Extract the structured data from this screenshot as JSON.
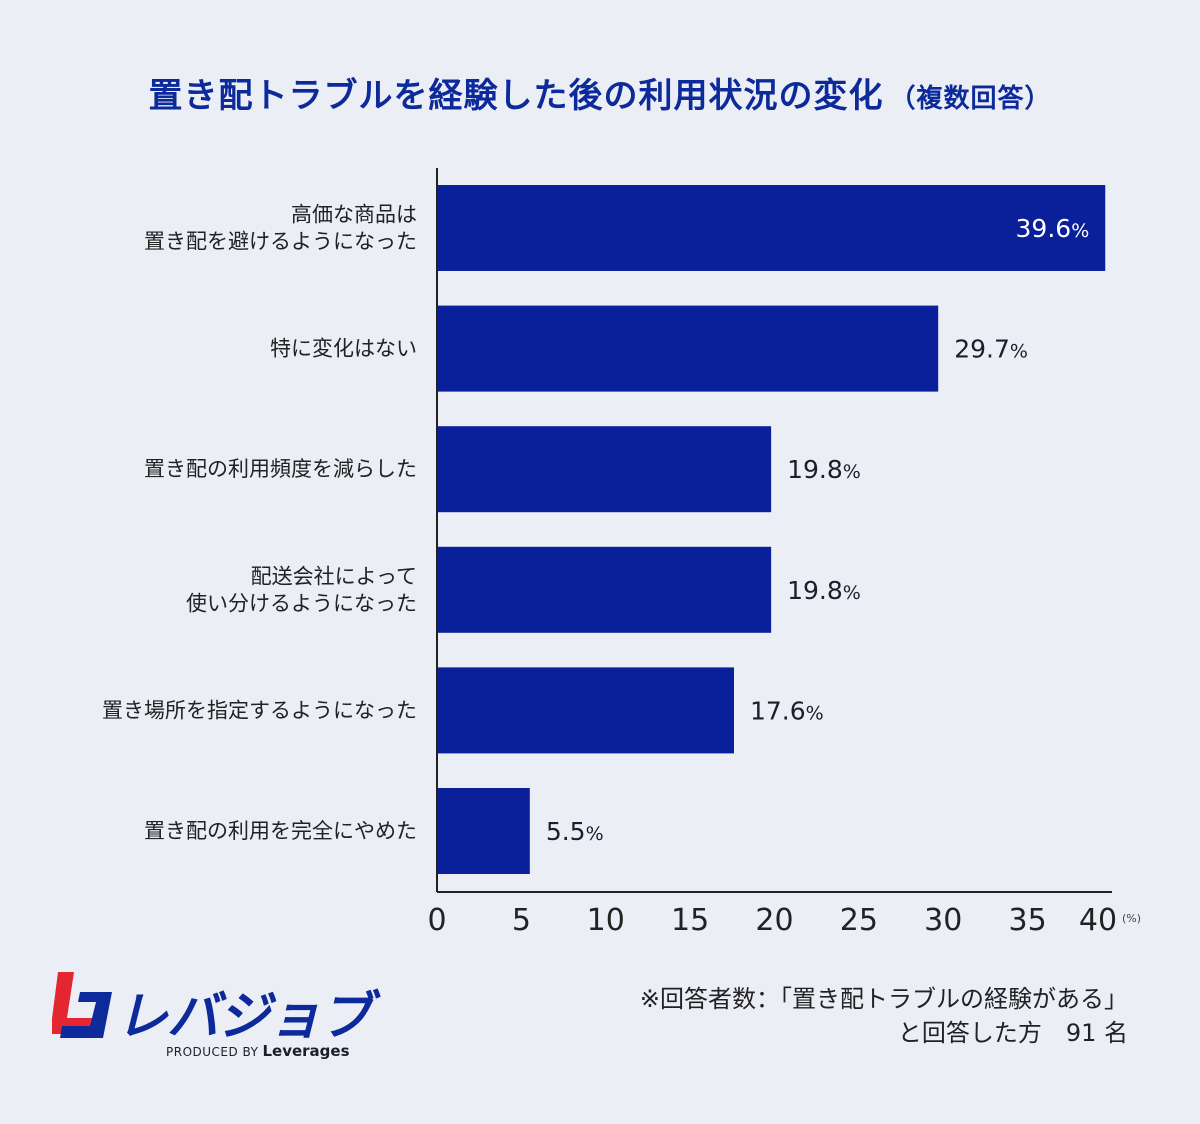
{
  "title": "置き配トラブルを経験した後の利用状況の変化",
  "subtitle": "（複数回答）",
  "chart_data": {
    "type": "bar",
    "orientation": "horizontal",
    "categories": [
      [
        "高価な商品は",
        "置き配を避けるようになった"
      ],
      [
        "特に変化はない"
      ],
      [
        "置き配の利用頻度を減らした"
      ],
      [
        "配送会社によって",
        "使い分けるようになった"
      ],
      [
        "置き場所を指定するようになった"
      ],
      [
        "置き配の利用を完全にやめた"
      ]
    ],
    "values": [
      39.6,
      29.7,
      19.8,
      19.8,
      17.6,
      5.5
    ],
    "value_labels": [
      "39.6",
      "29.7",
      "19.8",
      "19.8",
      "17.6",
      "5.5"
    ],
    "value_suffix": "%",
    "xlim": [
      0,
      40
    ],
    "xticks": [
      "0",
      "5",
      "10",
      "15",
      "20",
      "25",
      "30",
      "35",
      "40"
    ],
    "x_unit": "(%)",
    "bar_color": "#0a1f9a",
    "grid": false
  },
  "footer": {
    "note_line1": "※回答者数：「置き配トラブルの経験がある」",
    "note_line2": "と回答した方　91 名",
    "brand": "レバジョブ",
    "produced_by": "PRODUCED BY",
    "company": "Leverages"
  }
}
